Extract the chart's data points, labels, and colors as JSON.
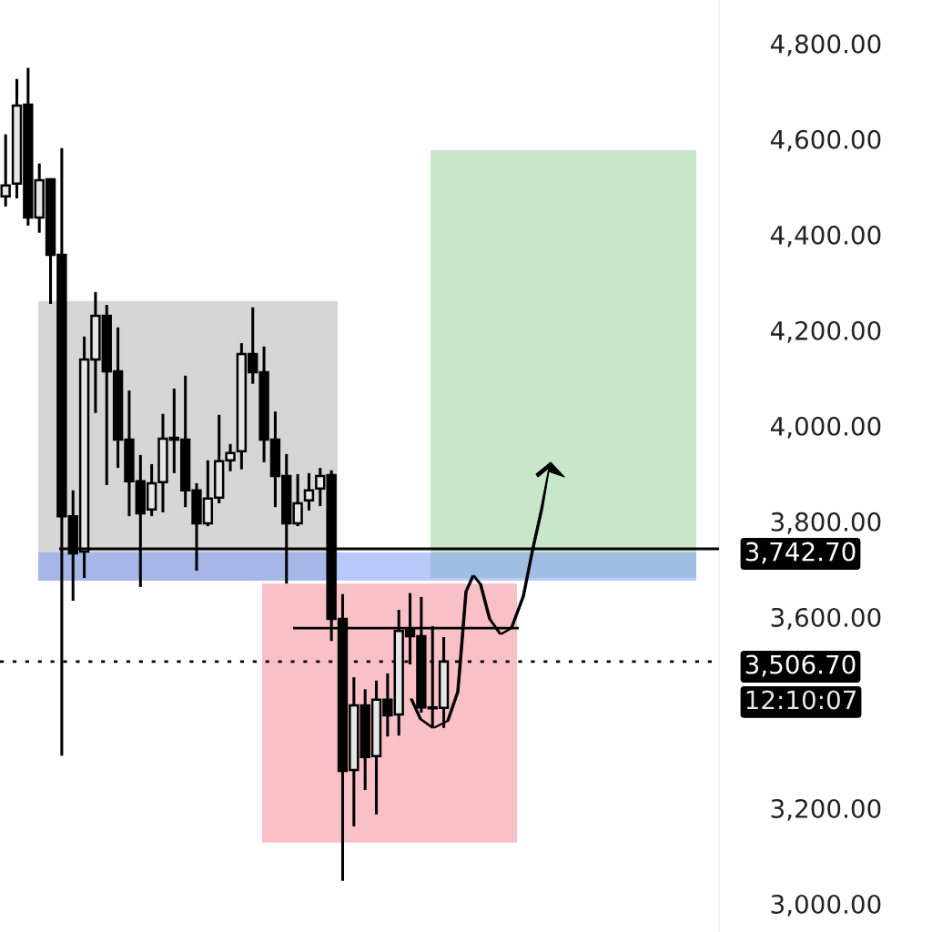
{
  "chart_data": {
    "type": "candlestick",
    "categories": [
      null,
      null,
      null,
      null,
      null,
      null,
      null,
      null,
      null,
      null,
      null,
      null,
      null,
      null,
      null,
      null,
      null,
      null,
      null,
      null,
      null,
      null,
      null,
      null,
      null,
      null,
      null,
      null,
      null,
      null,
      null,
      null,
      null,
      null,
      null,
      null,
      null,
      null,
      null,
      null,
      null,
      null,
      null,
      null,
      null,
      null,
      null,
      null,
      null,
      null,
      null,
      null,
      null,
      null,
      null,
      null,
      null,
      null,
      null,
      null,
      null,
      null,
      null,
      null
    ],
    "ohlc": [
      [
        4480,
        4610,
        4459,
        4503
      ],
      [
        4507,
        4726,
        4476,
        4670
      ],
      [
        4672,
        4749,
        4419,
        4436
      ],
      [
        4436,
        4549,
        4404,
        4514
      ],
      [
        4516,
        4518,
        4255,
        4358
      ],
      [
        4358,
        4581,
        3310,
        3811
      ],
      [
        3811,
        3865,
        3634,
        3733
      ],
      [
        3737,
        4187,
        3682,
        4139
      ],
      [
        4139,
        4280,
        4027,
        4230
      ],
      [
        4230,
        4253,
        3876,
        4114
      ],
      [
        4114,
        4206,
        3912,
        3971
      ],
      [
        3971,
        4074,
        3811,
        3884
      ],
      [
        3884,
        3939,
        3663,
        3817
      ],
      [
        3825,
        3920,
        3811,
        3880
      ],
      [
        3882,
        4025,
        3819,
        3973
      ],
      [
        3975,
        4078,
        3901,
        3971
      ],
      [
        3971,
        4105,
        3830,
        3865
      ],
      [
        3865,
        3880,
        3697,
        3796
      ],
      [
        3796,
        3928,
        3790,
        3848
      ],
      [
        3850,
        4023,
        3838,
        3926
      ],
      [
        3928,
        3962,
        3905,
        3943
      ],
      [
        3947,
        4173,
        3909,
        4150
      ],
      [
        4150,
        4248,
        4088,
        4112
      ],
      [
        4112,
        4166,
        3924,
        3971
      ],
      [
        3971,
        4030,
        3830,
        3895
      ],
      [
        3895,
        3941,
        3670,
        3796
      ],
      [
        3796,
        3899,
        3790,
        3838
      ],
      [
        3844,
        3901,
        3823,
        3865
      ],
      [
        3869,
        3912,
        3832,
        3895
      ],
      [
        3897,
        3907,
        3550,
        3596
      ],
      [
        3596,
        3648,
        3048,
        3278
      ],
      [
        3280,
        3474,
        3162,
        3415
      ],
      [
        3415,
        3449,
        3238,
        3307
      ],
      [
        3309,
        3467,
        3187,
        3427
      ],
      [
        3427,
        3482,
        3350,
        3394
      ],
      [
        3396,
        3615,
        3352,
        3571
      ],
      [
        3575,
        3650,
        3501,
        3560
      ],
      [
        3560,
        3642,
        3400,
        3411
      ],
      [
        3409,
        3581,
        3368,
        3411
      ],
      [
        3410,
        3558,
        3368,
        3507
      ],
      null,
      null,
      null,
      null,
      null,
      null,
      null,
      null,
      null,
      null,
      null,
      null,
      null,
      null,
      null,
      null,
      null,
      null,
      null,
      null,
      null,
      null,
      null,
      null
    ],
    "ylim": [
      2941,
      4891
    ],
    "yticks": [
      {
        "value": 3000,
        "label": "3,000.00"
      },
      {
        "value": 3200,
        "label": "3,200.00"
      },
      {
        "value": 3600,
        "label": "3,600.00"
      },
      {
        "value": 3800,
        "label": "3,800.00"
      },
      {
        "value": 4000,
        "label": "4,000.00"
      },
      {
        "value": 4200,
        "label": "4,200.00"
      },
      {
        "value": 4400,
        "label": "4,400.00"
      },
      {
        "value": 4600,
        "label": "4,600.00"
      },
      {
        "value": 4800,
        "label": "4,800.00"
      }
    ],
    "tick_labels": "y",
    "grid": false,
    "bands": [
      {
        "axis": "y",
        "from": 3676,
        "to": 4261,
        "color": "#d6d6d6"
      },
      {
        "axis": "y",
        "from": 3128,
        "to": 3670,
        "color": "#f9c0c8"
      },
      {
        "axis": "y",
        "from": 3682,
        "to": 4577,
        "color": "#c8e6c9"
      },
      {
        "axis": "y",
        "from": 3676,
        "to": 3735,
        "color": "#7f9cf5"
      }
    ],
    "ref_lines": [
      {
        "axis": "y",
        "value": 3742.7,
        "label": "3,742.70",
        "line_style": "solid",
        "color": "#000000"
      },
      {
        "axis": "y",
        "value": 3506.7,
        "label": "3,506.70",
        "line_style": "dotted",
        "color": "#000000"
      },
      {
        "axis": "y",
        "value": 3577,
        "line_style": "solid",
        "color": "#000000"
      }
    ],
    "annotations": [
      "12:10:07"
    ]
  }
}
